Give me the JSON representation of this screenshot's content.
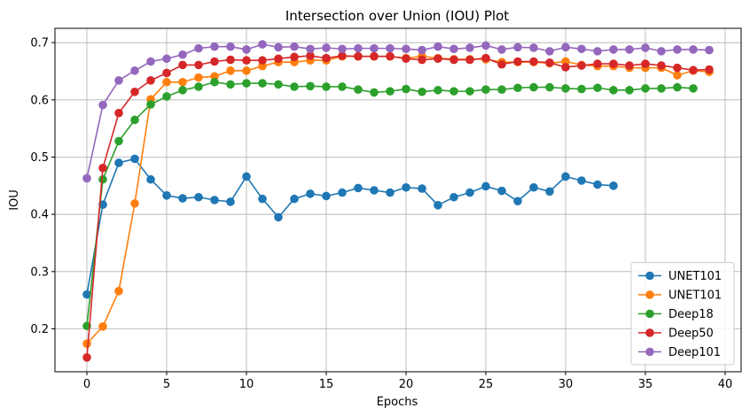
{
  "chart_data": {
    "type": "line",
    "title": "Intersection over Union (IOU) Plot",
    "xlabel": "Epochs",
    "ylabel": "IOU",
    "xlim": [
      -2,
      41
    ],
    "ylim": [
      0.125,
      0.725
    ],
    "xticks": [
      0,
      5,
      10,
      15,
      20,
      25,
      30,
      35,
      40
    ],
    "yticks": [
      0.2,
      0.3,
      0.4,
      0.5,
      0.6,
      0.7
    ],
    "grid": true,
    "legend_position": "lower right",
    "series": [
      {
        "name": "UNET101",
        "color": "#1f77b4",
        "x": [
          0,
          1,
          2,
          3,
          4,
          5,
          6,
          7,
          8,
          9,
          10,
          11,
          12,
          13,
          14,
          15,
          16,
          17,
          18,
          19,
          20,
          21,
          22,
          23,
          24,
          25,
          26,
          27,
          28,
          29,
          30,
          31,
          32,
          33
        ],
        "y": [
          0.26,
          0.417,
          0.49,
          0.497,
          0.461,
          0.433,
          0.428,
          0.43,
          0.425,
          0.422,
          0.466,
          0.427,
          0.395,
          0.427,
          0.436,
          0.432,
          0.438,
          0.446,
          0.442,
          0.438,
          0.447,
          0.445,
          0.416,
          0.43,
          0.438,
          0.449,
          0.441,
          0.423,
          0.447,
          0.44,
          0.466,
          0.459,
          0.452,
          0.45
        ]
      },
      {
        "name": "UNET101",
        "color": "#ff7f0e",
        "x": [
          0,
          1,
          2,
          3,
          4,
          5,
          6,
          7,
          8,
          9,
          10,
          11,
          12,
          13,
          14,
          15,
          16,
          17,
          18,
          19,
          20,
          21,
          22,
          23,
          24,
          25,
          26,
          27,
          28,
          29,
          30,
          31,
          32,
          33,
          34,
          35,
          36,
          37,
          38,
          39
        ],
        "y": [
          0.174,
          0.204,
          0.266,
          0.419,
          0.601,
          0.631,
          0.631,
          0.639,
          0.641,
          0.651,
          0.651,
          0.659,
          0.666,
          0.666,
          0.669,
          0.669,
          0.676,
          0.676,
          0.676,
          0.676,
          0.673,
          0.676,
          0.673,
          0.671,
          0.671,
          0.671,
          0.666,
          0.666,
          0.666,
          0.664,
          0.667,
          0.661,
          0.659,
          0.659,
          0.656,
          0.656,
          0.656,
          0.643,
          0.651,
          0.649
        ]
      },
      {
        "name": "Deep18",
        "color": "#2ca02c",
        "x": [
          0,
          1,
          2,
          3,
          4,
          5,
          6,
          7,
          8,
          9,
          10,
          11,
          12,
          13,
          14,
          15,
          16,
          17,
          18,
          19,
          20,
          21,
          22,
          23,
          24,
          25,
          26,
          27,
          28,
          29,
          30,
          31,
          32,
          33,
          34,
          35,
          36,
          37,
          38
        ],
        "y": [
          0.205,
          0.461,
          0.528,
          0.565,
          0.592,
          0.606,
          0.617,
          0.623,
          0.631,
          0.627,
          0.629,
          0.629,
          0.627,
          0.623,
          0.624,
          0.623,
          0.623,
          0.618,
          0.613,
          0.615,
          0.619,
          0.614,
          0.617,
          0.615,
          0.615,
          0.618,
          0.618,
          0.621,
          0.622,
          0.622,
          0.62,
          0.619,
          0.621,
          0.617,
          0.617,
          0.62,
          0.62,
          0.622,
          0.62
        ]
      },
      {
        "name": "Deep50",
        "color": "#d62728",
        "x": [
          0,
          1,
          2,
          3,
          4,
          5,
          6,
          7,
          8,
          9,
          10,
          11,
          12,
          13,
          14,
          15,
          16,
          17,
          18,
          19,
          20,
          21,
          22,
          23,
          24,
          25,
          26,
          27,
          28,
          29,
          30,
          31,
          32,
          33,
          34,
          35,
          36,
          37,
          38,
          39
        ],
        "y": [
          0.15,
          0.481,
          0.577,
          0.614,
          0.634,
          0.647,
          0.661,
          0.661,
          0.667,
          0.67,
          0.669,
          0.669,
          0.672,
          0.675,
          0.677,
          0.673,
          0.677,
          0.676,
          0.676,
          0.676,
          0.672,
          0.67,
          0.672,
          0.67,
          0.67,
          0.673,
          0.662,
          0.667,
          0.667,
          0.665,
          0.657,
          0.66,
          0.663,
          0.663,
          0.66,
          0.663,
          0.66,
          0.656,
          0.652,
          0.653
        ]
      },
      {
        "name": "Deep101",
        "color": "#9467bd",
        "x": [
          0,
          1,
          2,
          3,
          4,
          5,
          6,
          7,
          8,
          9,
          10,
          11,
          12,
          13,
          14,
          15,
          16,
          17,
          18,
          19,
          20,
          21,
          22,
          23,
          24,
          25,
          26,
          27,
          28,
          29,
          30,
          31,
          32,
          33,
          34,
          35,
          36,
          37,
          38,
          39
        ],
        "y": [
          0.463,
          0.591,
          0.634,
          0.651,
          0.667,
          0.672,
          0.679,
          0.69,
          0.693,
          0.693,
          0.688,
          0.697,
          0.692,
          0.693,
          0.689,
          0.691,
          0.689,
          0.69,
          0.69,
          0.69,
          0.689,
          0.687,
          0.693,
          0.689,
          0.691,
          0.695,
          0.688,
          0.692,
          0.691,
          0.685,
          0.692,
          0.689,
          0.685,
          0.688,
          0.688,
          0.691,
          0.685,
          0.688,
          0.688,
          0.687
        ]
      }
    ]
  }
}
